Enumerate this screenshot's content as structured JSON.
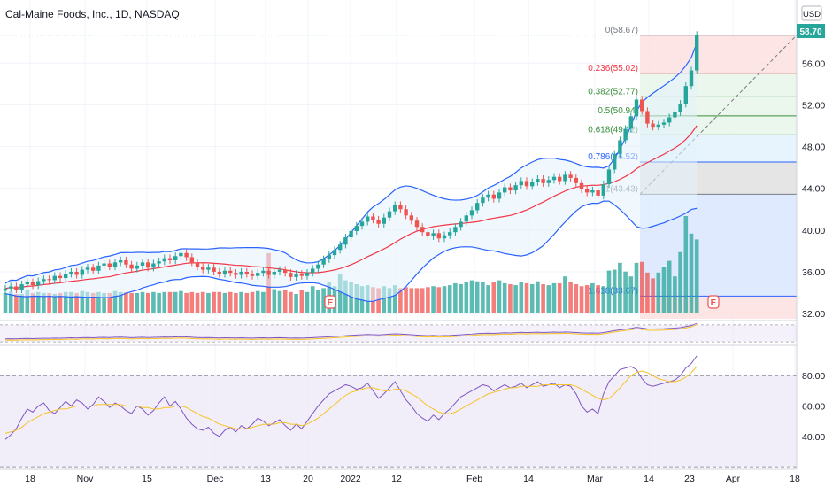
{
  "title": "Cal-Maine Foods, Inc., 1D, NASDAQ",
  "currency": "USD",
  "last_price": "58.70",
  "colors": {
    "up": "#26a69a",
    "down": "#ef5350",
    "bb_line": "#2962ff",
    "bb_fill": "#e3f2fd",
    "basis": "#f23645",
    "stoch_k": "#7e57c2",
    "stoch_d": "#f7c325",
    "grid": "#f0f3fa"
  },
  "chart_data": [
    {
      "type": "candlestick",
      "title": "Cal-Maine Foods, Inc., 1D, NASDAQ",
      "ylim": [
        31.5,
        59.5
      ],
      "y_ticks": [
        "56.00",
        "52.00",
        "48.00",
        "44.00",
        "40.00",
        "36.00",
        "32.00"
      ],
      "x_ticks": [
        "18",
        "Nov",
        "15",
        "Dec",
        "13",
        "20",
        "2022",
        "12",
        "Feb",
        "14",
        "Mar",
        "14",
        "23",
        "Apr",
        "18"
      ],
      "close": [
        34.4,
        34.6,
        34.3,
        34.8,
        35.0,
        34.7,
        35.1,
        35.3,
        35.2,
        35.6,
        35.4,
        35.8,
        36.0,
        35.7,
        36.2,
        36.4,
        36.1,
        36.6,
        36.8,
        36.5,
        36.9,
        37.1,
        36.7,
        36.3,
        36.6,
        36.9,
        36.4,
        36.8,
        37.0,
        37.3,
        37.1,
        37.5,
        37.8,
        37.4,
        36.9,
        36.5,
        36.2,
        36.4,
        36.0,
        35.8,
        36.1,
        35.9,
        35.7,
        36.0,
        35.8,
        35.6,
        35.9,
        36.1,
        35.7,
        36.0,
        36.2,
        35.9,
        35.5,
        35.8,
        35.6,
        35.9,
        36.3,
        36.7,
        37.2,
        37.6,
        38.1,
        38.6,
        39.3,
        39.9,
        40.4,
        40.8,
        41.3,
        41.0,
        40.6,
        41.2,
        41.8,
        42.4,
        42.0,
        41.4,
        40.9,
        40.3,
        39.8,
        39.4,
        39.7,
        39.2,
        39.5,
        39.8,
        40.3,
        40.8,
        41.4,
        41.9,
        42.6,
        43.1,
        43.4,
        43.0,
        43.6,
        44.1,
        43.8,
        44.3,
        44.7,
        44.2,
        44.6,
        44.9,
        44.5,
        44.8,
        45.1,
        44.7,
        45.3,
        45.0,
        44.5,
        43.9,
        43.6,
        43.8,
        43.3,
        44.4,
        45.8,
        47.3,
        48.6,
        49.7,
        50.9,
        52.5,
        51.4,
        50.2,
        49.9,
        50.1,
        50.3,
        50.8,
        51.3,
        52.1,
        53.8,
        55.3,
        58.7
      ],
      "volume": [
        21,
        22,
        20,
        20,
        24,
        21,
        22,
        21,
        21,
        20,
        21,
        22,
        22,
        21,
        23,
        22,
        21,
        22,
        21,
        21,
        23,
        22,
        22,
        21,
        21,
        22,
        21,
        22,
        21,
        22,
        22,
        22,
        23,
        21,
        22,
        21,
        22,
        21,
        22,
        22,
        21,
        22,
        21,
        22,
        21,
        22,
        23,
        22,
        62,
        25,
        23,
        24,
        22,
        20,
        24,
        22,
        28,
        24,
        26,
        32,
        28,
        40,
        34,
        32,
        30,
        28,
        29,
        27,
        26,
        28,
        26,
        29,
        26,
        27,
        26,
        26,
        26,
        27,
        28,
        27,
        28,
        29,
        31,
        30,
        32,
        34,
        33,
        32,
        29,
        32,
        34,
        31,
        30,
        29,
        32,
        31,
        30,
        33,
        30,
        29,
        31,
        31,
        38,
        32,
        30,
        28,
        29,
        31,
        29,
        28,
        44,
        45,
        52,
        43,
        38,
        52,
        53,
        42,
        36,
        42,
        48,
        54,
        38,
        63,
        100,
        82,
        76
      ],
      "bollinger": {
        "length": 20,
        "stdev": 2
      },
      "fibonacci": [
        {
          "level": "0(58.67)",
          "color": "#787b86"
        },
        {
          "level": "0.236(55.02)",
          "color": "#f23645"
        },
        {
          "level": "0.382(52.77)",
          "color": "#388e3c"
        },
        {
          "level": "0.5(50.94)",
          "color": "#388e3c"
        },
        {
          "level": "0.618(49.12)",
          "color": "#388e3c"
        },
        {
          "level": "0.786(46.52)",
          "color": "#2962ff"
        },
        {
          "level": "1(43.43)",
          "color": "#787b86"
        },
        {
          "level": "1.618(33.67)",
          "color": "#2962ff"
        }
      ],
      "fib_values": [
        58.67,
        55.02,
        52.77,
        50.94,
        49.12,
        46.52,
        43.43,
        33.67
      ],
      "earnings_markers": [
        "E",
        "E"
      ]
    },
    {
      "type": "line",
      "title": "",
      "y_ticks": [
        "80.00",
        "60.00",
        "40.00"
      ],
      "ylim": [
        23,
        97
      ],
      "bands": [
        80,
        50,
        20
      ],
      "series": [
        {
          "values": [
            38,
            41,
            45,
            52,
            58,
            56,
            60,
            62,
            57,
            55,
            59,
            63,
            60,
            64,
            62,
            58,
            61,
            66,
            63,
            59,
            62,
            60,
            57,
            55,
            60,
            58,
            54,
            57,
            62,
            66,
            60,
            63,
            58,
            52,
            48,
            45,
            44,
            46,
            42,
            40,
            44,
            46,
            43,
            47,
            45,
            48,
            52,
            50,
            47,
            49,
            51,
            47,
            44,
            48,
            45,
            50,
            55,
            60,
            64,
            68,
            70,
            72,
            74,
            73,
            71,
            72,
            75,
            70,
            65,
            68,
            72,
            76,
            70,
            64,
            60,
            55,
            52,
            50,
            54,
            51,
            55,
            58,
            62,
            66,
            68,
            70,
            72,
            74,
            73,
            70,
            72,
            74,
            72,
            73,
            75,
            72,
            74,
            76,
            73,
            74,
            75,
            72,
            74,
            73,
            68,
            60,
            56,
            58,
            55,
            68,
            76,
            80,
            84,
            85,
            86,
            84,
            78,
            74,
            73,
            74,
            75,
            76,
            77,
            80,
            85,
            88,
            93
          ]
        },
        {
          "values": [
            42,
            43,
            44,
            46,
            49,
            51,
            53,
            55,
            56,
            57,
            58,
            58,
            59,
            60,
            60,
            60,
            60,
            61,
            61,
            61,
            61,
            61,
            60,
            60,
            60,
            59,
            59,
            58,
            58,
            59,
            59,
            60,
            60,
            59,
            57,
            55,
            53,
            52,
            50,
            48,
            47,
            46,
            45,
            45,
            45,
            46,
            47,
            48,
            48,
            48,
            49,
            49,
            48,
            48,
            47,
            48,
            50,
            52,
            55,
            58,
            61,
            64,
            67,
            69,
            70,
            71,
            72,
            72,
            71,
            70,
            70,
            71,
            71,
            70,
            68,
            66,
            63,
            60,
            58,
            56,
            55,
            55,
            56,
            58,
            60,
            62,
            64,
            66,
            68,
            69,
            70,
            71,
            72,
            72,
            73,
            73,
            73,
            73,
            74,
            74,
            74,
            74,
            74,
            74,
            73,
            71,
            69,
            67,
            65,
            64,
            65,
            68,
            72,
            76,
            80,
            82,
            83,
            82,
            80,
            78,
            77,
            76,
            76,
            77,
            79,
            82,
            86
          ]
        }
      ]
    }
  ]
}
